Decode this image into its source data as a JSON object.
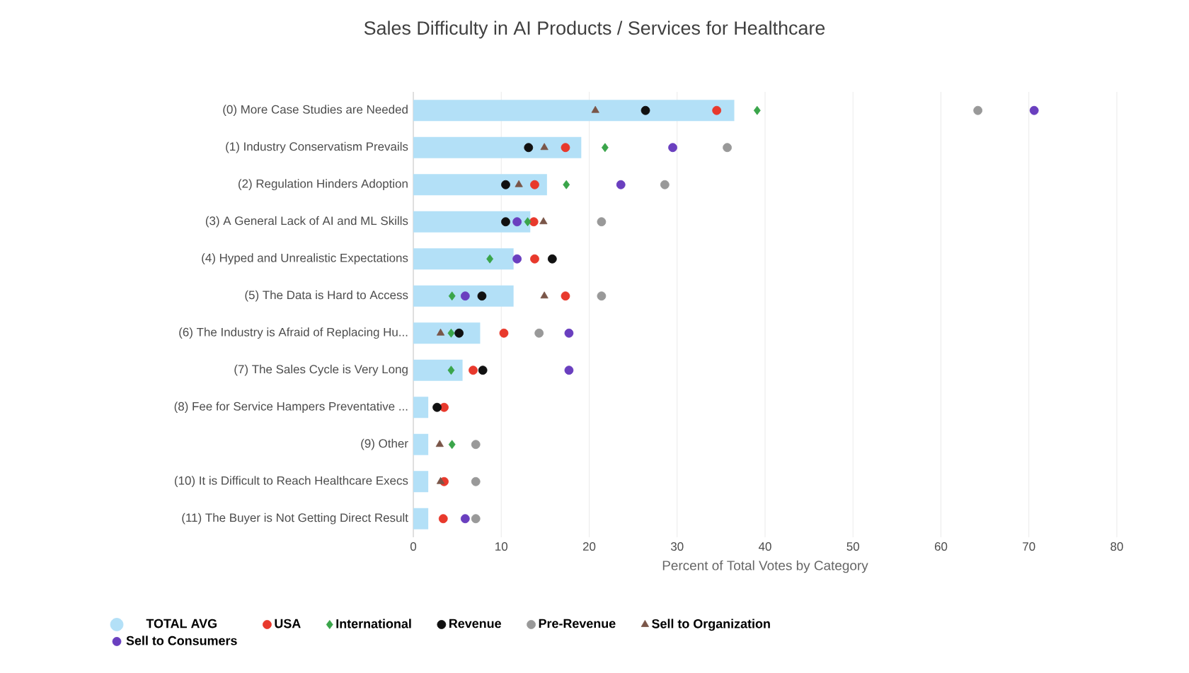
{
  "chart_data": {
    "type": "bar",
    "orientation": "horizontal",
    "title": "Sales Difficulty in AI Products / Services for Healthcare",
    "xlabel": "Percent of Total Votes by Category",
    "categories": [
      "(0) More Case Studies are Needed",
      "(1) Industry Conservatism Prevails",
      "(2) Regulation Hinders Adoption",
      "(3) A General Lack of AI and ML Skills",
      "(4) Hyped and Unrealistic Expectations",
      "(5) The Data is Hard to Access",
      "(6) The Industry is Afraid of Replacing Hu...",
      "(7) The Sales Cycle is Very Long",
      "(8) Fee for Service Hampers Preventative ...",
      "(9) Other",
      "(10) It is Difficult to Reach Healthcare Execs",
      "(11) The Buyer is Not Getting Direct Result"
    ],
    "xlim": [
      0,
      80
    ],
    "xticks": [
      0,
      10,
      20,
      30,
      40,
      50,
      60,
      70,
      80
    ],
    "grid": "x",
    "legend": "bottom",
    "series": [
      {
        "name": "TOTAL AVG",
        "color": "#b3e0f7",
        "values": [
          36.5,
          19.1,
          15.2,
          13.3,
          11.4,
          11.4,
          7.6,
          5.6,
          1.7,
          1.7,
          1.7,
          1.7
        ]
      },
      {
        "name": "USA",
        "type": "scatter",
        "marker": "circle",
        "color": "#e8392c",
        "values": [
          34.5,
          17.3,
          13.8,
          13.7,
          13.8,
          17.3,
          10.3,
          6.8,
          3.5,
          null,
          3.5,
          3.4
        ]
      },
      {
        "name": "International",
        "type": "scatter",
        "marker": "diamond",
        "color": "#3aa54a",
        "values": [
          39.1,
          21.8,
          17.4,
          13.0,
          8.7,
          4.4,
          4.3,
          4.3,
          null,
          4.4,
          null,
          null
        ]
      },
      {
        "name": "Revenue",
        "type": "scatter",
        "marker": "circle",
        "color": "#111111",
        "values": [
          26.4,
          13.1,
          10.5,
          10.5,
          15.8,
          7.8,
          5.2,
          7.9,
          2.7,
          null,
          null,
          null
        ]
      },
      {
        "name": "Pre-Revenue",
        "type": "scatter",
        "marker": "circle",
        "color": "#999999",
        "values": [
          64.2,
          35.7,
          28.6,
          21.4,
          null,
          21.4,
          14.3,
          null,
          null,
          7.1,
          7.1,
          7.1
        ]
      },
      {
        "name": "Sell to Organization",
        "type": "scatter",
        "marker": "triangle",
        "color": "#7a5548",
        "values": [
          20.7,
          14.9,
          12.0,
          14.8,
          null,
          14.9,
          3.1,
          null,
          null,
          3.0,
          3.1,
          null
        ]
      },
      {
        "name": "Sell to Consumers",
        "type": "scatter",
        "marker": "circle",
        "color": "#6a3fbf",
        "values": [
          70.6,
          29.5,
          23.6,
          11.8,
          11.8,
          5.9,
          17.7,
          17.7,
          null,
          null,
          null,
          5.9
        ]
      }
    ]
  }
}
